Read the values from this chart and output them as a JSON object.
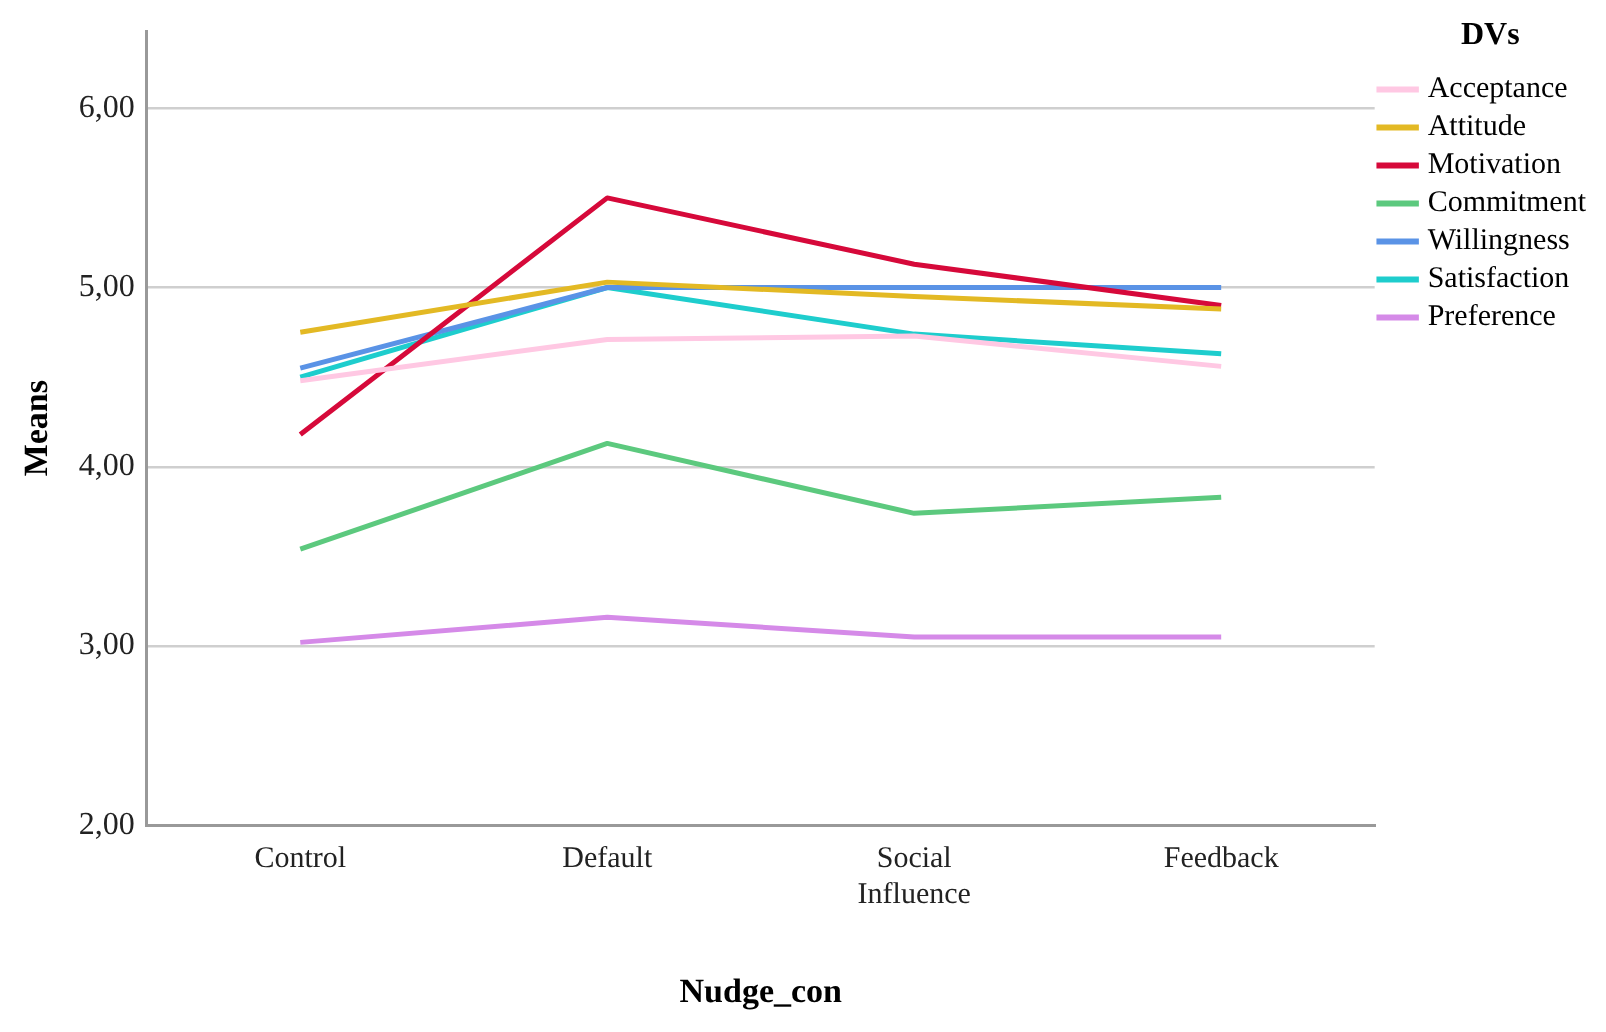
{
  "chart_data": {
    "type": "line",
    "xlabel": "Nudge_con",
    "ylabel": "Means",
    "legend_title": "DVs",
    "legend": "top right",
    "grid": "y",
    "marker": "none",
    "line_style": "solid",
    "categories": [
      "Control",
      "Default",
      "Social Influence",
      "Feedback"
    ],
    "ylim": [
      2,
      6.43
    ],
    "yticks": [
      {
        "value": 2,
        "label": "2,00"
      },
      {
        "value": 3,
        "label": "3,00"
      },
      {
        "value": 4,
        "label": "4,00"
      },
      {
        "value": 5,
        "label": "5,00"
      },
      {
        "value": 6,
        "label": "6,00"
      }
    ],
    "series": [
      {
        "name": "Acceptance",
        "color": "#ffc8e3",
        "values": [
          4.48,
          4.71,
          4.73,
          4.56
        ]
      },
      {
        "name": "Attitude",
        "color": "#e3b924",
        "values": [
          4.75,
          5.03,
          4.95,
          4.88
        ]
      },
      {
        "name": "Motivation",
        "color": "#d6093a",
        "values": [
          4.18,
          5.5,
          5.13,
          4.9
        ]
      },
      {
        "name": "Commitment",
        "color": "#5cc97e",
        "values": [
          3.54,
          4.13,
          3.74,
          3.83
        ]
      },
      {
        "name": "Willingness",
        "color": "#5a93e6",
        "values": [
          4.55,
          5.0,
          5.0,
          5.0
        ]
      },
      {
        "name": "Satisfaction",
        "color": "#1ecdcd",
        "values": [
          4.5,
          5.0,
          4.74,
          4.63
        ]
      },
      {
        "name": "Preference",
        "color": "#d58ae8",
        "values": [
          3.02,
          3.16,
          3.05,
          3.05
        ]
      }
    ]
  }
}
